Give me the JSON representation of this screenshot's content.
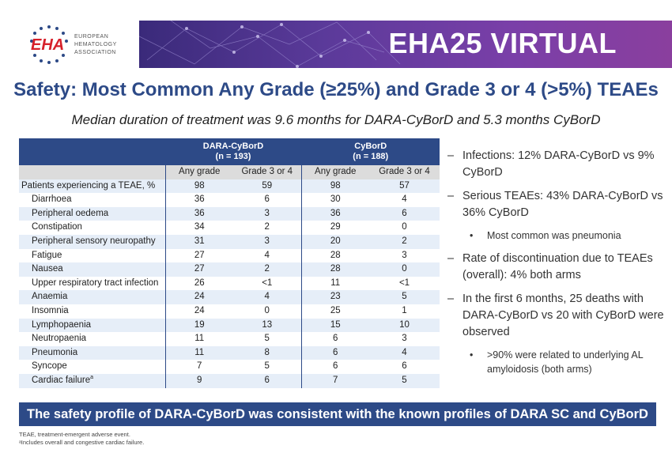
{
  "header": {
    "logo_text": "EHA",
    "org_lines": [
      "EUROPEAN",
      "HEMATOLOGY",
      "ASSOCIATION"
    ],
    "banner_title": "EHA25 VIRTUAL"
  },
  "title": "Safety: Most Common Any Grade (≥25%) and Grade 3 or 4 (>5%) TEAEs",
  "subtitle": "Median duration of treatment was 9.6 months for DARA-CyBorD and 5.3 months CyBorD",
  "table": {
    "groups": [
      {
        "name": "DARA-CyBorD",
        "n": "(n = 193)"
      },
      {
        "name": "CyBorD",
        "n": "(n = 188)"
      }
    ],
    "subheaders": [
      "Any grade",
      "Grade 3 or 4",
      "Any grade",
      "Grade 3 or 4"
    ],
    "rows": [
      {
        "label": "Patients experiencing a TEAE, %",
        "sup": "",
        "values": [
          "98",
          "59",
          "98",
          "57"
        ]
      },
      {
        "label": "Diarrhoea",
        "sup": "",
        "values": [
          "36",
          "6",
          "30",
          "4"
        ]
      },
      {
        "label": "Peripheral oedema",
        "sup": "",
        "values": [
          "36",
          "3",
          "36",
          "6"
        ]
      },
      {
        "label": "Constipation",
        "sup": "",
        "values": [
          "34",
          "2",
          "29",
          "0"
        ]
      },
      {
        "label": "Peripheral sensory neuropathy",
        "sup": "",
        "values": [
          "31",
          "3",
          "20",
          "2"
        ]
      },
      {
        "label": "Fatigue",
        "sup": "",
        "values": [
          "27",
          "4",
          "28",
          "3"
        ]
      },
      {
        "label": "Nausea",
        "sup": "",
        "values": [
          "27",
          "2",
          "28",
          "0"
        ]
      },
      {
        "label": "Upper respiratory tract infection",
        "sup": "",
        "values": [
          "26",
          "<1",
          "11",
          "<1"
        ]
      },
      {
        "label": "Anaemia",
        "sup": "",
        "values": [
          "24",
          "4",
          "23",
          "5"
        ]
      },
      {
        "label": "Insomnia",
        "sup": "",
        "values": [
          "24",
          "0",
          "25",
          "1"
        ]
      },
      {
        "label": "Lymphopaenia",
        "sup": "",
        "values": [
          "19",
          "13",
          "15",
          "10"
        ]
      },
      {
        "label": "Neutropaenia",
        "sup": "",
        "values": [
          "11",
          "5",
          "6",
          "3"
        ]
      },
      {
        "label": "Pneumonia",
        "sup": "",
        "values": [
          "11",
          "8",
          "6",
          "4"
        ]
      },
      {
        "label": "Syncope",
        "sup": "",
        "values": [
          "7",
          "5",
          "6",
          "6"
        ]
      },
      {
        "label": "Cardiac failure",
        "sup": "a",
        "values": [
          "9",
          "6",
          "7",
          "5"
        ]
      }
    ]
  },
  "bullets": {
    "b1": "Infections: 12% DARA-CyBorD vs 9% CyBorD",
    "b2": "Serious TEAEs: 43% DARA-CyBorD vs 36% CyBorD",
    "b2_sub": "Most common was pneumonia",
    "b3": "Rate of discontinuation due to TEAEs (overall): 4% both arms",
    "b4": "In the first 6 months, 25 deaths with DARA-CyBorD vs 20 with CyBorD were observed",
    "b4_sub": ">90% were related to underlying AL amyloidosis (both arms)",
    "dash": "–",
    "dot": "•"
  },
  "bottom_banner": "The safety profile of DARA-CyBorD was consistent with the known profiles of DARA SC and CyBorD",
  "footnotes": [
    "TEAE, treatment-emergent adverse event.",
    "ᵃIncludes overall and congestive cardiac failure."
  ],
  "colors": {
    "accent": "#2d4a87",
    "banner": "#5b3a9a",
    "logo_red": "#d6202a"
  }
}
